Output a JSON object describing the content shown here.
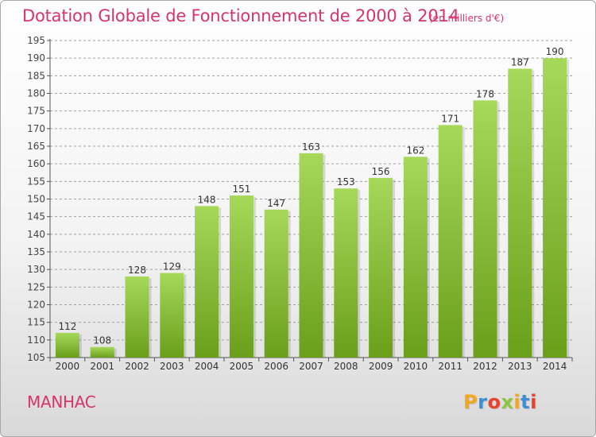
{
  "header": {
    "title": "Dotation Globale de Fonctionnement de 2000 à 2014",
    "unit": "(en milliers d'€)"
  },
  "footer": {
    "town": "MANHAC",
    "logo": "Proxiti"
  },
  "colors": {
    "title": "#d9336b",
    "bar_light": "#a6d85a",
    "bar_dark": "#6a9f1a",
    "grid": "#9a9a9a"
  },
  "chart_data": {
    "type": "bar",
    "title": "Dotation Globale de Fonctionnement de 2000 à 2014",
    "subtitle": "(en milliers d'€)",
    "xlabel": "",
    "ylabel": "",
    "categories": [
      "2000",
      "2001",
      "2002",
      "2003",
      "2004",
      "2005",
      "2006",
      "2007",
      "2008",
      "2009",
      "2010",
      "2011",
      "2012",
      "2013",
      "2014"
    ],
    "values": [
      112,
      108,
      128,
      129,
      148,
      151,
      147,
      163,
      153,
      156,
      162,
      171,
      178,
      187,
      190
    ],
    "ylim": [
      105,
      195
    ],
    "yticks": [
      105,
      110,
      115,
      120,
      125,
      130,
      135,
      140,
      145,
      150,
      155,
      160,
      165,
      170,
      175,
      180,
      185,
      190,
      195
    ],
    "grid": true,
    "legend": "none"
  }
}
